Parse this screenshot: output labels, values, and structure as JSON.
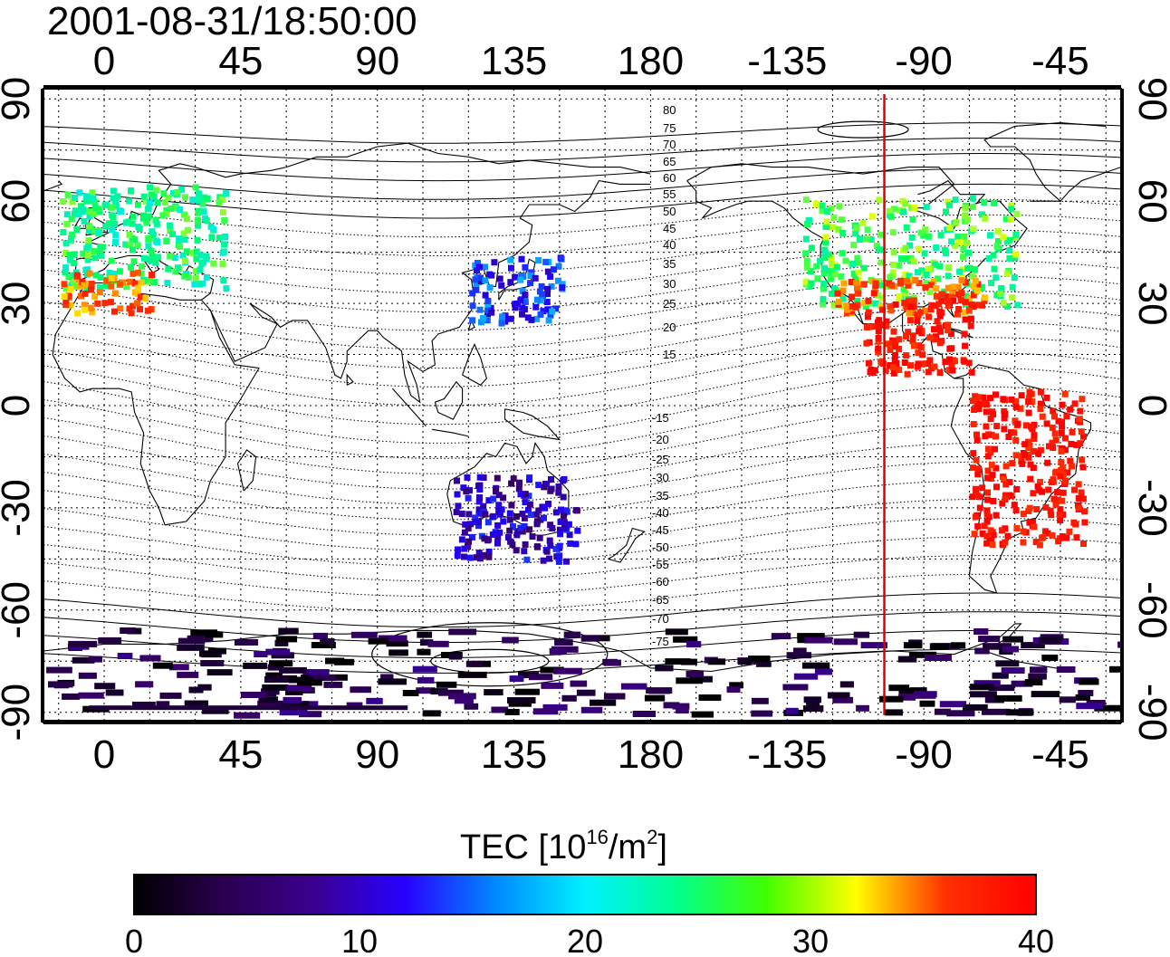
{
  "title": "2001-08-31/18:50:00",
  "map": {
    "lon_ticks_top": [
      "0",
      "45",
      "90",
      "135",
      "180",
      "-135",
      "-90",
      "-45"
    ],
    "lon_ticks_bottom": [
      "0",
      "45",
      "90",
      "135",
      "180",
      "-135",
      "-90",
      "-45"
    ],
    "lat_ticks_left": [
      "90",
      "60",
      "30",
      "0",
      "-30",
      "-60",
      "-90"
    ],
    "lat_ticks_right": [
      "90",
      "60",
      "30",
      "0",
      "-30",
      "-60",
      "-90"
    ],
    "lon_tick_values": [
      0,
      45,
      90,
      135,
      180,
      225,
      270,
      315
    ],
    "lat_tick_values": [
      90,
      60,
      30,
      0,
      -30,
      -60,
      -90
    ],
    "lon_range": [
      -20,
      335
    ],
    "lat_range": [
      -93,
      93
    ],
    "grid": "dotted, 15 degree spacing",
    "marker_longitude": -103,
    "marker_color": "#e00000",
    "maglat_labels_north": [
      "80",
      "75",
      "70",
      "65",
      "60",
      "55",
      "50",
      "45",
      "40",
      "35",
      "30",
      "25",
      "20",
      "15"
    ],
    "maglat_labels_south": [
      "-15",
      "-20",
      "-25",
      "-30",
      "-35",
      "-40",
      "-45",
      "-50",
      "-55",
      "-60",
      "-65",
      "-70",
      "-75"
    ]
  },
  "colorbar": {
    "label_main": "TEC  [10",
    "label_sup1": "16",
    "label_mid": "/m",
    "label_sup2": "2",
    "label_end": "]",
    "ticks": [
      "0",
      "10",
      "20",
      "30",
      "40"
    ],
    "range": [
      0,
      40
    ],
    "colormap": [
      "#000000",
      "#3a0070",
      "#2000ff",
      "#00e8ff",
      "#00ff60",
      "#ffff00",
      "#ff3000",
      "#ff0000"
    ]
  },
  "tec_regions": [
    {
      "name": "north-america",
      "lon": [
        -130,
        -60
      ],
      "lat": [
        30,
        62
      ],
      "tec": 24
    },
    {
      "name": "north-america-south",
      "lon": [
        -120,
        -70
      ],
      "lat": [
        28,
        38
      ],
      "tec": 34
    },
    {
      "name": "central-america",
      "lon": [
        -110,
        -75
      ],
      "lat": [
        10,
        32
      ],
      "tec": 38
    },
    {
      "name": "south-america",
      "lon": [
        -75,
        -38
      ],
      "lat": [
        -40,
        5
      ],
      "tec": 38
    },
    {
      "name": "europe",
      "lon": [
        -15,
        40
      ],
      "lat": [
        35,
        65
      ],
      "tec": 22
    },
    {
      "name": "europe-south",
      "lon": [
        -15,
        15
      ],
      "lat": [
        28,
        40
      ],
      "tec": 33
    },
    {
      "name": "japan-east-asia",
      "lon": [
        120,
        150
      ],
      "lat": [
        25,
        45
      ],
      "tec": 12
    },
    {
      "name": "australia",
      "lon": [
        115,
        155
      ],
      "lat": [
        -45,
        -20
      ],
      "tec": 9
    },
    {
      "name": "antarctica",
      "lon": [
        -20,
        335
      ],
      "lat": [
        -90,
        -65
      ],
      "tec": 3
    }
  ]
}
